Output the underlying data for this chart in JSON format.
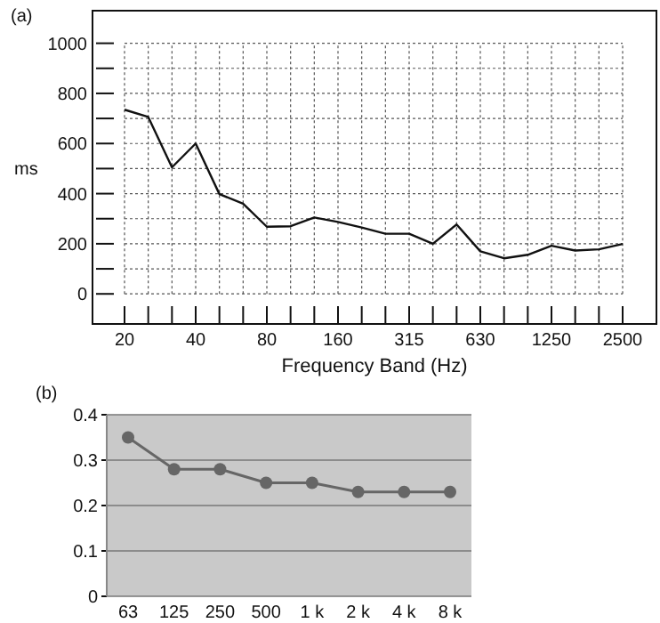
{
  "chart_data": [
    {
      "type": "line",
      "title": "(a)",
      "xlabel": "Frequency Band (Hz)",
      "ylabel": "ms",
      "categories": [
        "20",
        null,
        null,
        "40",
        null,
        null,
        "80",
        null,
        null,
        "160",
        null,
        null,
        "315",
        null,
        null,
        "630",
        null,
        null,
        "1250",
        null,
        null,
        "2500"
      ],
      "series": [
        {
          "color": "#111111",
          "values": [
            735,
            706,
            505,
            600,
            398,
            360,
            268,
            270,
            305,
            287,
            265,
            240,
            240,
            200,
            277,
            170,
            142,
            156,
            192,
            173,
            178,
            199
          ]
        }
      ],
      "ylim": [
        -120,
        1130
      ],
      "yticks": [
        0,
        {
          "value": 100,
          "label": null
        },
        200,
        {
          "value": 300,
          "label": null
        },
        400,
        {
          "value": 500,
          "label": null
        },
        600,
        {
          "value": 700,
          "label": null
        },
        800,
        {
          "value": 900,
          "label": null
        },
        1000
      ],
      "grid": true,
      "marker": "none",
      "line_style": "solid"
    },
    {
      "type": "line",
      "title": "(b)",
      "categories": [
        "63",
        "125",
        "250",
        "500",
        "1 k",
        "2 k",
        "4 k",
        "8 k"
      ],
      "series": [
        {
          "color": "#666666",
          "values": [
            0.35,
            0.28,
            0.28,
            0.25,
            0.25,
            0.23,
            0.23,
            0.23
          ]
        }
      ],
      "ylim": [
        0,
        0.4
      ],
      "yticks": [
        0,
        0.1,
        0.2,
        0.3,
        0.4
      ],
      "grid": "y",
      "marker": "circle",
      "line_style": "solid"
    }
  ]
}
